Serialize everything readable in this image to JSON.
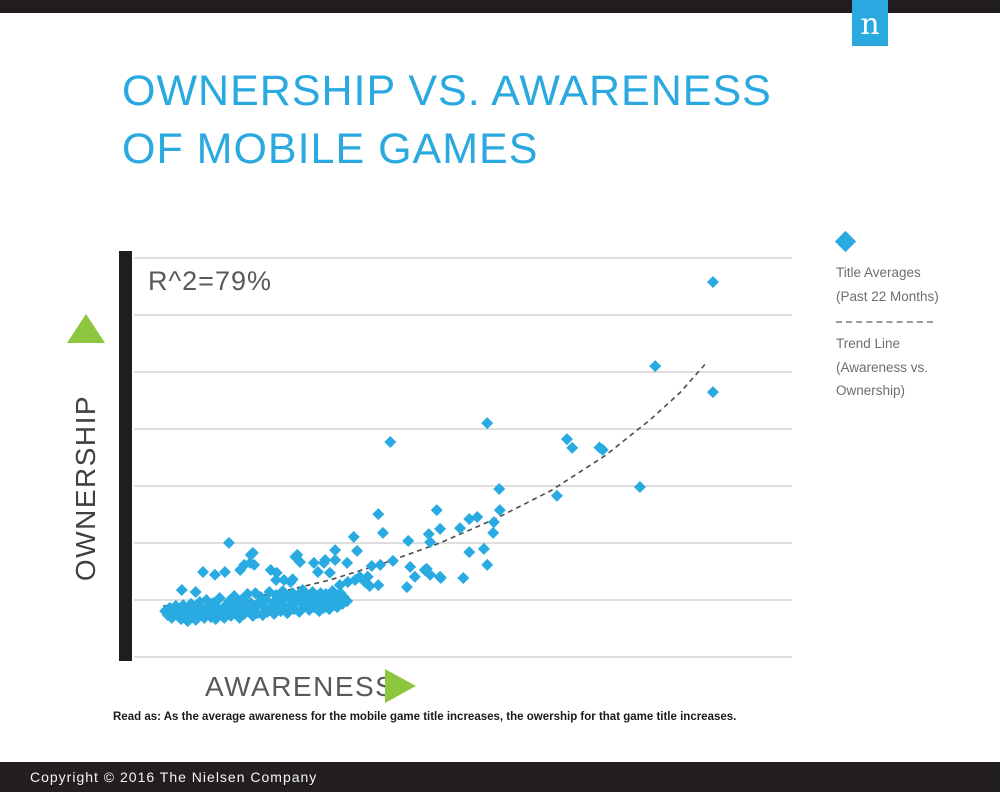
{
  "header": {
    "logo_letter": "n"
  },
  "title": {
    "line1": "OWNERSHIP VS. AWARENESS",
    "line2": "OF MOBILE GAMES"
  },
  "chart": {
    "r_squared_label": "R^2=79%",
    "y_axis_label": "OWNERSHIP",
    "x_axis_label": "AWARENESS"
  },
  "legend": {
    "items": [
      {
        "symbol": "diamond-icon",
        "line1": "Title Averages",
        "line2": "(Past 22 Months)"
      },
      {
        "symbol": "dashed-line-icon",
        "line1": "Trend Line",
        "line2": "(Awareness vs.",
        "line3": "Ownership)"
      }
    ]
  },
  "note": "Read as: As the average awareness for the mobile game title increases, the owership for that game title increases.",
  "footer": {
    "copyright": "Copyright © 2016 The Nielsen Company"
  },
  "colors": {
    "brand_blue": "#29a9e0",
    "point_blue": "#29abe2",
    "arrow_green": "#8dc63f",
    "trend_gray": "#4d4d4d",
    "gridline_gray": "#bdbdbd",
    "bar_black": "#211d1e"
  },
  "chart_data": {
    "type": "scatter",
    "title": "Ownership vs. Awareness of Mobile Games",
    "xlabel": "AWARENESS",
    "ylabel": "OWNERSHIP",
    "annotation": "R^2=79%",
    "xlim": [
      0,
      100
    ],
    "ylim": [
      0,
      100
    ],
    "axes_note": "Axes carry no tick labels; point values are relative estimates (0-100) read from plot geometry.",
    "grid": "8 horizontal gridlines, evenly spaced",
    "legend_position": "right",
    "series": [
      {
        "name": "Title Averages (Past 22 Months)",
        "marker": "diamond",
        "points": [
          [
            5.6,
            11.5
          ],
          [
            6.0,
            10.5
          ],
          [
            6.3,
            12.3
          ],
          [
            6.6,
            9.8
          ],
          [
            7.0,
            11.0
          ],
          [
            7.2,
            12.8
          ],
          [
            7.5,
            10.3
          ],
          [
            7.8,
            11.8
          ],
          [
            8.0,
            9.5
          ],
          [
            8.3,
            13.0
          ],
          [
            8.5,
            10.8
          ],
          [
            8.8,
            12.0
          ],
          [
            9.0,
            9.0
          ],
          [
            9.2,
            11.3
          ],
          [
            9.5,
            13.3
          ],
          [
            9.7,
            10.0
          ],
          [
            10.0,
            12.5
          ],
          [
            10.2,
            9.3
          ],
          [
            10.5,
            11.5
          ],
          [
            10.8,
            13.8
          ],
          [
            11.0,
            10.5
          ],
          [
            11.2,
            12.0
          ],
          [
            11.5,
            9.8
          ],
          [
            11.8,
            14.3
          ],
          [
            12.0,
            11.0
          ],
          [
            12.2,
            12.8
          ],
          [
            12.5,
            10.0
          ],
          [
            12.8,
            13.5
          ],
          [
            13.0,
            11.8
          ],
          [
            13.2,
            9.5
          ],
          [
            13.5,
            12.3
          ],
          [
            13.8,
            14.8
          ],
          [
            14.0,
            10.8
          ],
          [
            14.2,
            12.0
          ],
          [
            14.5,
            9.8
          ],
          [
            14.8,
            13.0
          ],
          [
            15.0,
            11.3
          ],
          [
            15.2,
            14.0
          ],
          [
            15.5,
            10.3
          ],
          [
            15.8,
            12.5
          ],
          [
            16.0,
            15.3
          ],
          [
            16.2,
            11.0
          ],
          [
            16.5,
            13.3
          ],
          [
            16.8,
            9.8
          ],
          [
            17.0,
            12.0
          ],
          [
            17.2,
            14.5
          ],
          [
            17.5,
            10.8
          ],
          [
            17.8,
            12.8
          ],
          [
            18.0,
            15.8
          ],
          [
            18.2,
            11.5
          ],
          [
            18.5,
            13.5
          ],
          [
            18.8,
            10.3
          ],
          [
            19.0,
            12.3
          ],
          [
            19.2,
            16.0
          ],
          [
            19.5,
            11.0
          ],
          [
            19.8,
            13.8
          ],
          [
            20.0,
            15.0
          ],
          [
            20.3,
            10.5
          ],
          [
            20.5,
            12.5
          ],
          [
            20.8,
            14.3
          ],
          [
            21.0,
            11.3
          ],
          [
            21.3,
            16.3
          ],
          [
            21.5,
            12.0
          ],
          [
            21.8,
            13.5
          ],
          [
            22.0,
            10.8
          ],
          [
            22.3,
            15.5
          ],
          [
            22.5,
            12.8
          ],
          [
            22.8,
            14.0
          ],
          [
            23.0,
            11.5
          ],
          [
            23.3,
            16.5
          ],
          [
            23.5,
            13.0
          ],
          [
            23.8,
            15.0
          ],
          [
            24.0,
            11.0
          ],
          [
            24.3,
            12.5
          ],
          [
            24.5,
            14.5
          ],
          [
            24.8,
            16.0
          ],
          [
            25.0,
            12.0
          ],
          [
            25.3,
            13.8
          ],
          [
            25.5,
            15.3
          ],
          [
            25.8,
            11.3
          ],
          [
            26.0,
            14.0
          ],
          [
            26.3,
            16.8
          ],
          [
            26.5,
            12.8
          ],
          [
            26.8,
            15.5
          ],
          [
            27.0,
            13.3
          ],
          [
            27.3,
            11.8
          ],
          [
            27.5,
            14.8
          ],
          [
            27.8,
            16.3
          ],
          [
            28.0,
            12.5
          ],
          [
            28.3,
            15.0
          ],
          [
            28.5,
            13.5
          ],
          [
            28.8,
            11.5
          ],
          [
            29.0,
            16.0
          ],
          [
            29.3,
            14.3
          ],
          [
            29.5,
            12.3
          ],
          [
            29.8,
            15.8
          ],
          [
            30.0,
            13.8
          ],
          [
            30.3,
            12.0
          ],
          [
            30.5,
            14.5
          ],
          [
            30.8,
            16.5
          ],
          [
            31.0,
            13.0
          ],
          [
            31.3,
            15.3
          ],
          [
            31.5,
            12.5
          ],
          [
            31.8,
            14.0
          ],
          [
            32.0,
            16.0
          ],
          [
            32.3,
            13.3
          ],
          [
            32.5,
            15.0
          ],
          [
            33.0,
            14.0
          ],
          [
            8.1,
            16.8
          ],
          [
            10.2,
            16.3
          ],
          [
            11.3,
            21.3
          ],
          [
            13.1,
            20.6
          ],
          [
            14.6,
            21.3
          ],
          [
            15.2,
            28.6
          ],
          [
            16.9,
            21.8
          ],
          [
            17.5,
            23.1
          ],
          [
            18.4,
            23.6
          ],
          [
            18.5,
            25.6
          ],
          [
            18.8,
            26.1
          ],
          [
            19.0,
            23.1
          ],
          [
            21.5,
            21.8
          ],
          [
            22.3,
            19.3
          ],
          [
            22.4,
            21.1
          ],
          [
            23.5,
            19.3
          ],
          [
            24.5,
            18.8
          ],
          [
            24.8,
            19.5
          ],
          [
            25.2,
            25.1
          ],
          [
            25.5,
            25.6
          ],
          [
            25.9,
            23.8
          ],
          [
            28.0,
            23.6
          ],
          [
            28.6,
            21.3
          ],
          [
            29.5,
            23.6
          ],
          [
            29.7,
            24.3
          ],
          [
            30.4,
            21.1
          ],
          [
            31.2,
            26.8
          ],
          [
            31.2,
            24.3
          ],
          [
            31.9,
            18.0
          ],
          [
            33.0,
            23.6
          ],
          [
            33.1,
            18.8
          ],
          [
            34.0,
            30.1
          ],
          [
            34.2,
            19.3
          ],
          [
            34.5,
            26.6
          ],
          [
            34.9,
            20.1
          ],
          [
            35.7,
            18.8
          ],
          [
            36.1,
            20.1
          ],
          [
            36.4,
            17.8
          ],
          [
            36.7,
            22.8
          ],
          [
            37.7,
            35.8
          ],
          [
            37.7,
            18.0
          ],
          [
            38.0,
            23.1
          ],
          [
            38.4,
            31.1
          ],
          [
            39.5,
            53.9
          ],
          [
            39.9,
            24.1
          ],
          [
            42.0,
            17.5
          ],
          [
            42.2,
            29.1
          ],
          [
            42.5,
            22.6
          ],
          [
            43.2,
            20.1
          ],
          [
            44.7,
            21.8
          ],
          [
            45.0,
            22.1
          ],
          [
            45.3,
            30.8
          ],
          [
            45.5,
            28.8
          ],
          [
            45.5,
            20.6
          ],
          [
            46.5,
            36.8
          ],
          [
            47.0,
            32.1
          ],
          [
            47.0,
            20.1
          ],
          [
            47.1,
            19.8
          ],
          [
            50.0,
            32.3
          ],
          [
            50.5,
            19.8
          ],
          [
            51.4,
            34.6
          ],
          [
            51.4,
            26.3
          ],
          [
            52.6,
            35.1
          ],
          [
            53.6,
            27.1
          ],
          [
            54.1,
            58.6
          ],
          [
            54.1,
            23.1
          ],
          [
            55.0,
            31.1
          ],
          [
            55.1,
            33.8
          ],
          [
            55.9,
            42.1
          ],
          [
            56.0,
            36.8
          ],
          [
            64.6,
            40.4
          ],
          [
            66.1,
            54.6
          ],
          [
            66.9,
            52.4
          ],
          [
            71.0,
            52.5
          ],
          [
            71.5,
            51.9
          ],
          [
            77.1,
            42.6
          ],
          [
            79.4,
            72.9
          ],
          [
            88.1,
            94.0
          ],
          [
            88.1,
            66.4
          ]
        ]
      }
    ],
    "trend": {
      "name": "Trend Line (Awareness vs. Ownership)",
      "style": "dashed",
      "points": [
        [
          5.3,
          12.8
        ],
        [
          13.9,
          13.8
        ],
        [
          22.1,
          16.0
        ],
        [
          30.4,
          19.3
        ],
        [
          38.7,
          23.6
        ],
        [
          47.0,
          28.6
        ],
        [
          55.3,
          34.6
        ],
        [
          63.6,
          41.6
        ],
        [
          71.8,
          50.4
        ],
        [
          78.6,
          59.4
        ],
        [
          83.1,
          66.2
        ],
        [
          87.2,
          73.9
        ]
      ]
    }
  }
}
